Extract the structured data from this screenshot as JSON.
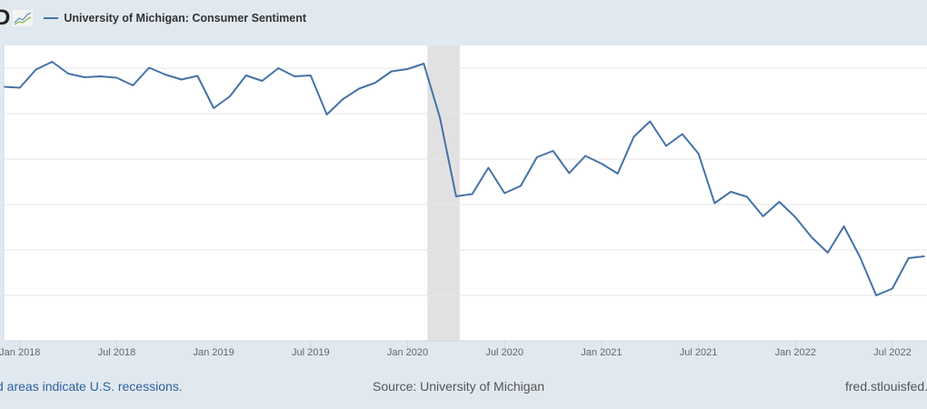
{
  "header": {
    "logo_text": "FRED",
    "legend_label": "University of Michigan: Consumer Sentiment"
  },
  "footer": {
    "recession_note": "Shaded areas indicate U.S. recessions.",
    "recession_note_visible": "d areas indicate U.S. recessions.",
    "source": "Source: University of Michigan",
    "site": "fred.stlouisfed.org"
  },
  "colors": {
    "series": "#4572a7",
    "recession": "#e1e1e1",
    "background": "#e1e9f0"
  },
  "chart_data": {
    "type": "line",
    "title": "University of Michigan: Consumer Sentiment",
    "xlabel": "",
    "ylabel": "",
    "ylim": [
      40,
      105
    ],
    "y_gridlines": [
      50,
      60,
      70,
      80,
      90,
      100
    ],
    "grid": true,
    "start_month": "2017-12",
    "x_tick_labels": [
      {
        "label": "Jan 2018",
        "month": "2018-01"
      },
      {
        "label": "Jul 2018",
        "month": "2018-07"
      },
      {
        "label": "Jan 2019",
        "month": "2019-01"
      },
      {
        "label": "Jul 2019",
        "month": "2019-07"
      },
      {
        "label": "Jan 2020",
        "month": "2020-01"
      },
      {
        "label": "Jul 2020",
        "month": "2020-07"
      },
      {
        "label": "Jan 2021",
        "month": "2021-01"
      },
      {
        "label": "Jul 2021",
        "month": "2021-07"
      },
      {
        "label": "Jan 2022",
        "month": "2022-01"
      },
      {
        "label": "Jul 2022",
        "month": "2022-07"
      }
    ],
    "recessions": [
      {
        "start": "2020-02",
        "end": "2020-04"
      }
    ],
    "series": [
      {
        "name": "University of Michigan: Consumer Sentiment",
        "values": [
          95.9,
          95.7,
          99.7,
          101.4,
          98.8,
          98.0,
          98.2,
          97.9,
          96.2,
          100.1,
          98.6,
          97.5,
          98.3,
          91.2,
          93.8,
          98.4,
          97.2,
          100.0,
          98.2,
          98.4,
          89.8,
          93.2,
          95.5,
          96.8,
          99.3,
          99.8,
          101.0,
          89.1,
          71.8,
          72.3,
          78.1,
          72.5,
          74.1,
          80.4,
          81.8,
          76.9,
          80.7,
          79.0,
          76.8,
          84.9,
          88.3,
          82.9,
          85.5,
          81.2,
          70.3,
          72.8,
          71.7,
          67.4,
          70.6,
          67.2,
          62.8,
          59.4,
          65.2,
          58.4,
          50.0,
          51.5,
          58.2,
          58.6
        ]
      }
    ]
  }
}
